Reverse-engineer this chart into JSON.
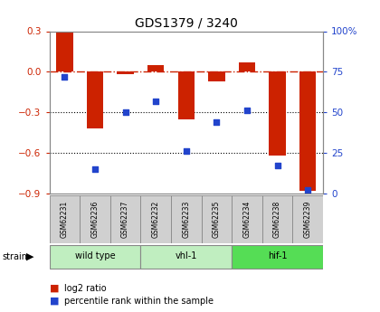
{
  "title": "GDS1379 / 3240",
  "samples": [
    "GSM62231",
    "GSM62236",
    "GSM62237",
    "GSM62232",
    "GSM62233",
    "GSM62235",
    "GSM62234",
    "GSM62238",
    "GSM62239"
  ],
  "log2_ratio": [
    0.3,
    -0.42,
    -0.02,
    0.05,
    -0.35,
    -0.07,
    0.07,
    -0.62,
    -0.88
  ],
  "percentile_rank": [
    72,
    15,
    50,
    57,
    26,
    44,
    51,
    17,
    2
  ],
  "groups": [
    {
      "label": "wild type",
      "start": 0,
      "end": 2,
      "color": "#c0eec0"
    },
    {
      "label": "vhl-1",
      "start": 3,
      "end": 5,
      "color": "#c0eec0"
    },
    {
      "label": "hif-1",
      "start": 6,
      "end": 8,
      "color": "#55dd55"
    }
  ],
  "ylim_left": [
    -0.9,
    0.3
  ],
  "ylim_right": [
    0,
    100
  ],
  "yticks_left": [
    -0.9,
    -0.6,
    -0.3,
    0.0,
    0.3
  ],
  "yticks_right": [
    0,
    25,
    50,
    75,
    100
  ],
  "bar_color": "#cc2200",
  "dot_color": "#2244cc",
  "dotted_lines": [
    -0.3,
    -0.6
  ],
  "background_color": "#ffffff",
  "label_log2": "log2 ratio",
  "label_pct": "percentile rank within the sample",
  "strain_label": "strain"
}
